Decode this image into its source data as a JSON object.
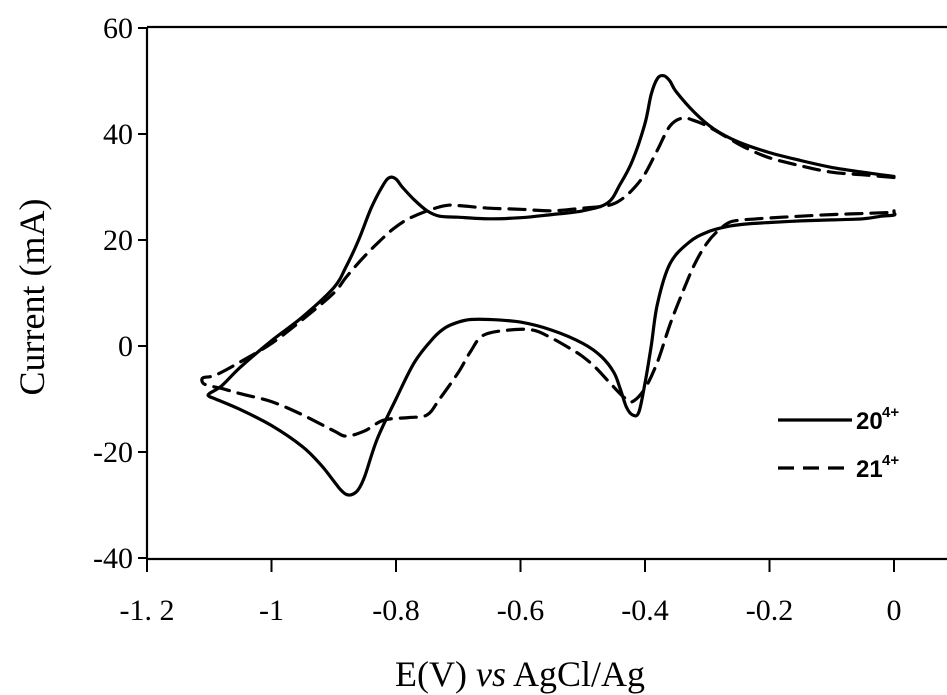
{
  "chart_data": {
    "type": "line",
    "title": "",
    "xlabel_prefix": "E(V) ",
    "xlabel_italic": "vs",
    "xlabel_suffix": " AgCl/Ag",
    "ylabel": "Current (mA)",
    "xlim": [
      -1.2,
      0.05
    ],
    "ylim": [
      -40,
      60
    ],
    "x_ticks": [
      -1.2,
      -1,
      -0.8,
      -0.6,
      -0.4,
      -0.2,
      0
    ],
    "x_tick_labels": [
      "-1. 2",
      "-1",
      "-0.8",
      "-0.6",
      "-0.4",
      "-0.2",
      "0"
    ],
    "y_ticks": [
      60,
      40,
      20,
      0,
      -20,
      -40
    ],
    "y_tick_labels": [
      "60",
      "40",
      "20",
      "0",
      "-20",
      "-40"
    ],
    "grid": false,
    "legend_position": "bottom-right",
    "series": [
      {
        "name": "20",
        "name_sup": "4+",
        "dash": "solid",
        "x": [
          0.0,
          -0.02,
          -0.05,
          -0.1,
          -0.15,
          -0.2,
          -0.25,
          -0.29,
          -0.32,
          -0.35,
          -0.36,
          -0.37,
          -0.38,
          -0.39,
          -0.4,
          -0.42,
          -0.44,
          -0.46,
          -0.5,
          -0.55,
          -0.6,
          -0.65,
          -0.7,
          -0.73,
          -0.75,
          -0.77,
          -0.79,
          -0.8,
          -0.81,
          -0.82,
          -0.84,
          -0.86,
          -0.88,
          -0.9,
          -0.95,
          -1.0,
          -1.05,
          -1.08,
          -1.1,
          -1.1,
          -1.09,
          -1.05,
          -1.0,
          -0.95,
          -0.92,
          -0.9,
          -0.89,
          -0.88,
          -0.87,
          -0.86,
          -0.85,
          -0.83,
          -0.8,
          -0.77,
          -0.74,
          -0.72,
          -0.7,
          -0.68,
          -0.65,
          -0.6,
          -0.55,
          -0.5,
          -0.47,
          -0.45,
          -0.44,
          -0.43,
          -0.42,
          -0.41,
          -0.4,
          -0.39,
          -0.38,
          -0.36,
          -0.33,
          -0.3,
          -0.27,
          -0.24,
          -0.2,
          -0.15,
          -0.1,
          -0.05,
          -0.02,
          0.0,
          0.0,
          0.0
        ],
        "y": [
          32,
          32.3,
          32.8,
          33.7,
          35.0,
          36.5,
          38.5,
          41.0,
          44.0,
          48.0,
          50.0,
          51.0,
          50.5,
          47.5,
          42.0,
          35.0,
          30.5,
          27.0,
          25.5,
          24.8,
          24.2,
          24.0,
          24.3,
          24.5,
          25.5,
          27.5,
          30.0,
          31.5,
          31.8,
          30.5,
          26.0,
          20.0,
          15.0,
          11.0,
          5.5,
          1.0,
          -4.0,
          -7.5,
          -9.0,
          -9.5,
          -10.0,
          -12.0,
          -15.0,
          -19.0,
          -22.5,
          -25.5,
          -27.0,
          -28.0,
          -28.0,
          -27.0,
          -24.5,
          -17.5,
          -10.0,
          -3.0,
          1.5,
          3.5,
          4.5,
          5.0,
          5.0,
          4.5,
          3.0,
          0.5,
          -2.0,
          -5.0,
          -8.0,
          -11.5,
          -13.0,
          -12.5,
          -7.0,
          0.0,
          8.0,
          15.5,
          19.5,
          21.5,
          22.5,
          23.0,
          23.3,
          23.6,
          23.8,
          24.0,
          24.5,
          24.7,
          25.2,
          25.5
        ]
      },
      {
        "name": "21",
        "name_sup": "4+",
        "dash": "dashed",
        "x": [
          0.0,
          -0.05,
          -0.1,
          -0.15,
          -0.2,
          -0.24,
          -0.27,
          -0.3,
          -0.32,
          -0.34,
          -0.36,
          -0.38,
          -0.4,
          -0.42,
          -0.44,
          -0.46,
          -0.5,
          -0.55,
          -0.6,
          -0.65,
          -0.7,
          -0.72,
          -0.75,
          -0.78,
          -0.8,
          -0.82,
          -0.85,
          -0.88,
          -0.9,
          -0.95,
          -1.0,
          -1.05,
          -1.09,
          -1.11,
          -1.11,
          -1.1,
          -1.08,
          -1.05,
          -1.0,
          -0.95,
          -0.9,
          -0.88,
          -0.85,
          -0.82,
          -0.78,
          -0.75,
          -0.73,
          -0.7,
          -0.68,
          -0.66,
          -0.62,
          -0.58,
          -0.55,
          -0.52,
          -0.5,
          -0.48,
          -0.46,
          -0.44,
          -0.43,
          -0.42,
          -0.4,
          -0.38,
          -0.36,
          -0.34,
          -0.32,
          -0.3,
          -0.28,
          -0.26,
          -0.22,
          -0.18,
          -0.15,
          -0.1,
          -0.05,
          0.0
        ],
        "y": [
          31.8,
          32.3,
          32.8,
          34.0,
          35.5,
          37.5,
          39.5,
          41.5,
          42.5,
          43.0,
          41.5,
          37.0,
          32.5,
          29.5,
          27.5,
          26.5,
          26.0,
          25.5,
          25.8,
          26.0,
          26.5,
          26.5,
          25.5,
          24.0,
          22.5,
          20.5,
          17.0,
          13.0,
          10.0,
          5.0,
          0.5,
          -3.0,
          -5.5,
          -6.0,
          -7.0,
          -7.5,
          -8.0,
          -9.0,
          -10.5,
          -13.0,
          -16.0,
          -17.0,
          -16.0,
          -14.0,
          -13.5,
          -13.0,
          -10.0,
          -5.0,
          -1.0,
          2.0,
          3.0,
          3.0,
          1.5,
          -0.5,
          -2.0,
          -4.0,
          -6.5,
          -9.0,
          -10.0,
          -10.5,
          -8.0,
          -3.0,
          4.0,
          10.0,
          15.5,
          19.5,
          22.0,
          23.5,
          24.0,
          24.3,
          24.5,
          24.8,
          25.0,
          25.2
        ]
      }
    ]
  }
}
